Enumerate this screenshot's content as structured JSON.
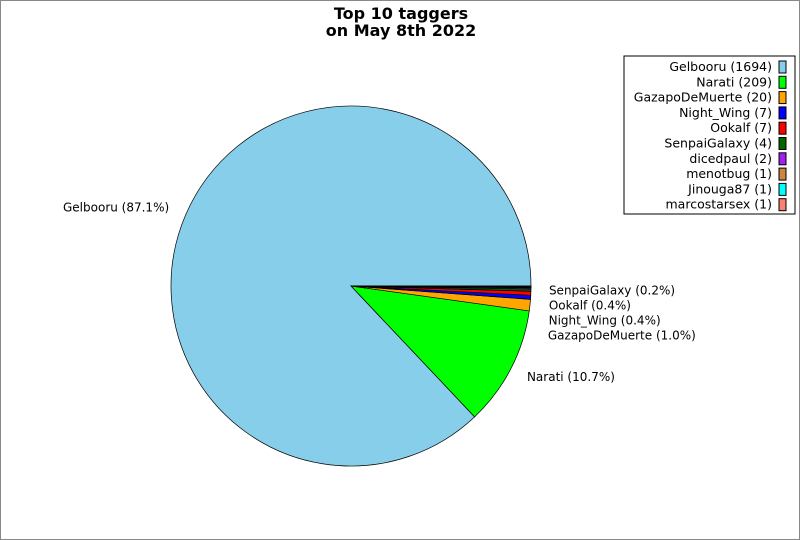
{
  "chart_data": {
    "type": "pie",
    "title": "Top 10 taggers\non May 8th 2022",
    "start_angle_deg": 0,
    "direction": "counterclockwise",
    "slices": [
      {
        "name": "Gelbooru",
        "value": 1694,
        "color": "#87ceeb",
        "legend": "Gelbooru (1694)",
        "label": "Gelbooru (87.1%)"
      },
      {
        "name": "Narati",
        "value": 209,
        "color": "#00ff00",
        "legend": "Narati (209)",
        "label": "Narati (10.7%)"
      },
      {
        "name": "GazapoDeMuerte",
        "value": 20,
        "color": "#ffa500",
        "legend": "GazapoDeMuerte (20)",
        "label": "GazapoDeMuerte (1.0%)"
      },
      {
        "name": "Night_Wing",
        "value": 7,
        "color": "#0000ff",
        "legend": "Night_Wing (7)",
        "label": "Night_Wing (0.4%)"
      },
      {
        "name": "Ookalf",
        "value": 7,
        "color": "#ff0000",
        "legend": "Ookalf (7)",
        "label": "Ookalf (0.4%)"
      },
      {
        "name": "SenpaiGalaxy",
        "value": 4,
        "color": "#006400",
        "legend": "SenpaiGalaxy (4)",
        "label": "SenpaiGalaxy (0.2%)"
      },
      {
        "name": "dicedpaul",
        "value": 2,
        "color": "#a020f0",
        "legend": "dicedpaul (2)",
        "label": ""
      },
      {
        "name": "menotbug",
        "value": 1,
        "color": "#cd853f",
        "legend": "menotbug (1)",
        "label": ""
      },
      {
        "name": "Jinouga87",
        "value": 1,
        "color": "#00ffff",
        "legend": "Jinouga87 (1)",
        "label": ""
      },
      {
        "name": "marcostarsex",
        "value": 1,
        "color": "#fa8072",
        "legend": "marcostarsex (1)",
        "label": ""
      }
    ],
    "legend_placement": "top-right"
  }
}
